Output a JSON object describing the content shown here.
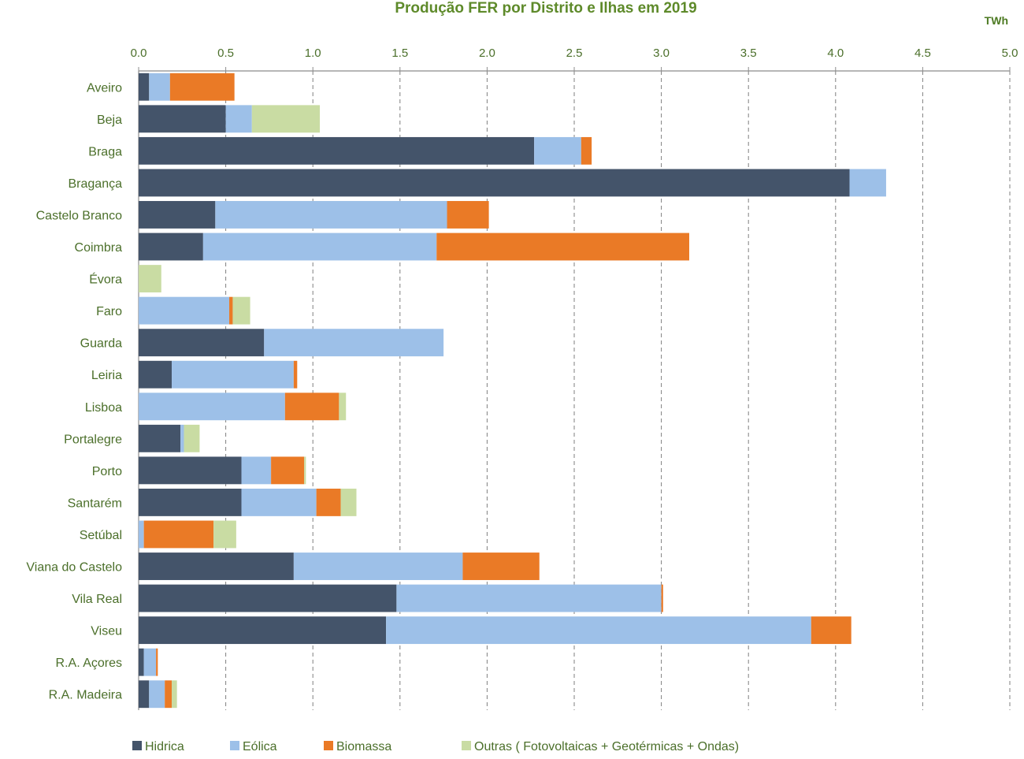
{
  "chart_data": {
    "type": "bar",
    "orientation": "horizontal",
    "stacked": true,
    "title": "Produção FER por Distrito e Ilhas em 2019",
    "unit_label": "TWh",
    "xlim": [
      0,
      5
    ],
    "x_ticks": [
      "0.0",
      "0.5",
      "1.0",
      "1.5",
      "2.0",
      "2.5",
      "3.0",
      "3.5",
      "4.0",
      "4.5",
      "5.0"
    ],
    "x_tick_values": [
      0,
      0.5,
      1,
      1.5,
      2,
      2.5,
      3,
      3.5,
      4,
      4.5,
      5
    ],
    "x_axis_position": "top",
    "grid": "vertical dashed",
    "legend_position": "bottom",
    "categories": [
      "Aveiro",
      "Beja",
      "Braga",
      "Bragança",
      "Castelo Branco",
      "Coimbra",
      "Évora",
      "Faro",
      "Guarda",
      "Leiria",
      "Lisboa",
      "Portalegre",
      "Porto",
      "Santarém",
      "Setúbal",
      "Viana do Castelo",
      "Vila Real",
      "Viseu",
      "R.A. Açores",
      "R.A. Madeira"
    ],
    "series": [
      {
        "name": "Hidrica",
        "color": "#44546a",
        "values": [
          0.06,
          0.5,
          2.27,
          4.08,
          0.44,
          0.37,
          0.0,
          0.0,
          0.72,
          0.19,
          0.0,
          0.24,
          0.59,
          0.59,
          0.0,
          0.89,
          1.48,
          1.42,
          0.03,
          0.06
        ]
      },
      {
        "name": "Eólica",
        "color": "#9dc0e8",
        "values": [
          0.12,
          0.15,
          0.27,
          0.21,
          1.33,
          1.34,
          0.0,
          0.52,
          1.03,
          0.7,
          0.84,
          0.02,
          0.17,
          0.43,
          0.03,
          0.97,
          1.52,
          2.44,
          0.07,
          0.09
        ]
      },
      {
        "name": "Biomassa",
        "color": "#ea7a26",
        "values": [
          0.37,
          0.0,
          0.06,
          0.0,
          0.24,
          1.45,
          0.0,
          0.02,
          0.0,
          0.02,
          0.31,
          0.0,
          0.19,
          0.14,
          0.4,
          0.44,
          0.01,
          0.23,
          0.01,
          0.04
        ]
      },
      {
        "name": "Outras ( Fotovoltaicas + Geotérmicas + Ondas)",
        "color": "#c9dca3",
        "values": [
          0.0,
          0.39,
          0.0,
          0.0,
          0.0,
          0.0,
          0.13,
          0.1,
          0.0,
          0.0,
          0.04,
          0.09,
          0.01,
          0.09,
          0.13,
          0.0,
          0.0,
          0.0,
          0.0,
          0.03
        ]
      }
    ]
  }
}
